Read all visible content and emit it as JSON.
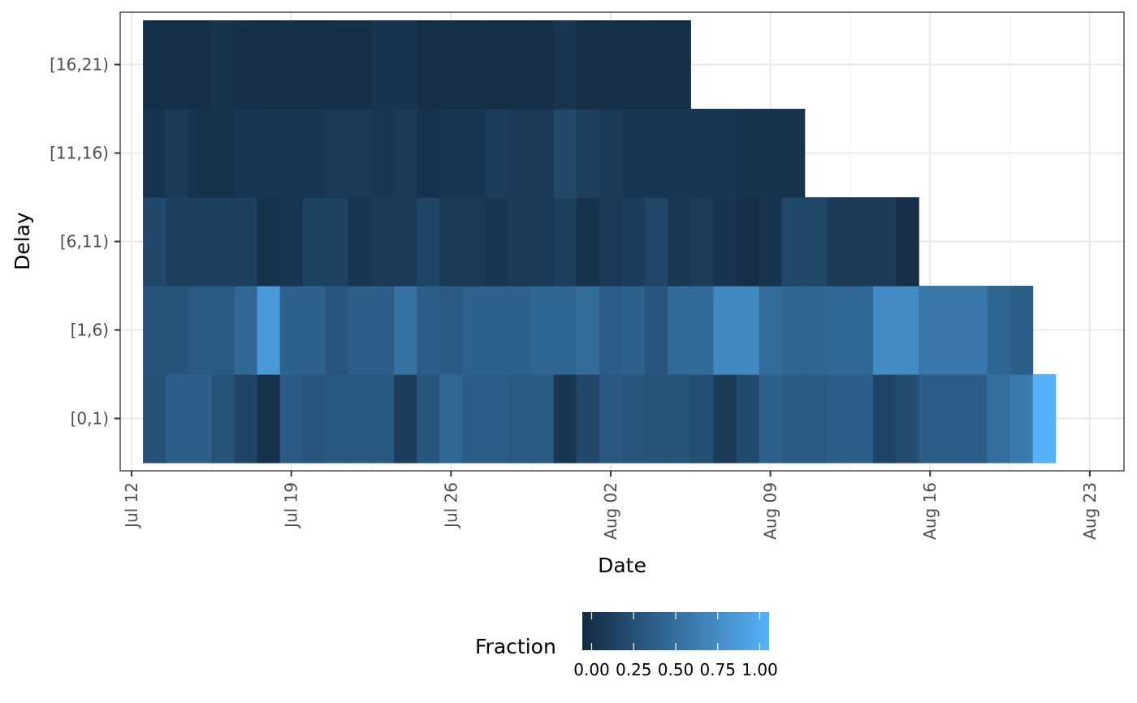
{
  "chart_data": {
    "type": "heatmap",
    "xlabel": "Date",
    "ylabel": "Delay",
    "x_ticks": [
      "Jul 12",
      "Jul 19",
      "Jul 26",
      "Aug 02",
      "Aug 09",
      "Aug 16",
      "Aug 23"
    ],
    "x_tick_dates": [
      "2020-07-12",
      "2020-07-19",
      "2020-07-26",
      "2020-08-02",
      "2020-08-09",
      "2020-08-16",
      "2020-08-23"
    ],
    "xlim": [
      "2020-07-11T12:00",
      "2020-08-24T12:00"
    ],
    "grid": true,
    "legend": {
      "title": "Fraction",
      "position": "bottom",
      "ticks": [
        "0.00",
        "0.25",
        "0.50",
        "0.75",
        "1.00"
      ],
      "low_color": "#132B43",
      "high_color": "#56B1F7"
    },
    "series": [
      {
        "name": "[0,1)",
        "start": "2020-07-13",
        "values": [
          0.28,
          0.39,
          0.39,
          0.3,
          0.19,
          0.05,
          0.36,
          0.31,
          0.34,
          0.34,
          0.34,
          0.14,
          0.31,
          0.45,
          0.37,
          0.37,
          0.35,
          0.35,
          0.09,
          0.22,
          0.33,
          0.31,
          0.3,
          0.3,
          0.26,
          0.12,
          0.24,
          0.41,
          0.35,
          0.35,
          0.38,
          0.38,
          0.19,
          0.25,
          0.37,
          0.37,
          0.37,
          0.51,
          0.59,
          1.0
        ]
      },
      {
        "name": "[1,6)",
        "start": "2020-07-13",
        "values": [
          0.3,
          0.3,
          0.35,
          0.35,
          0.45,
          0.82,
          0.4,
          0.4,
          0.31,
          0.38,
          0.38,
          0.53,
          0.38,
          0.35,
          0.4,
          0.4,
          0.41,
          0.44,
          0.44,
          0.48,
          0.37,
          0.4,
          0.31,
          0.47,
          0.47,
          0.7,
          0.7,
          0.48,
          0.43,
          0.43,
          0.45,
          0.45,
          0.72,
          0.72,
          0.57,
          0.57,
          0.57,
          0.44,
          0.39
        ]
      },
      {
        "name": "[6,11)",
        "start": "2020-07-13",
        "values": [
          0.22,
          0.16,
          0.16,
          0.16,
          0.16,
          0.05,
          0.08,
          0.17,
          0.17,
          0.08,
          0.12,
          0.12,
          0.19,
          0.11,
          0.11,
          0.08,
          0.12,
          0.11,
          0.15,
          0.05,
          0.11,
          0.14,
          0.2,
          0.1,
          0.13,
          0.07,
          0.03,
          0.07,
          0.21,
          0.21,
          0.12,
          0.12,
          0.12,
          0.03
        ]
      },
      {
        "name": "[11,16)",
        "start": "2020-07-13",
        "values": [
          0.06,
          0.12,
          0.05,
          0.05,
          0.09,
          0.09,
          0.09,
          0.09,
          0.11,
          0.11,
          0.09,
          0.11,
          0.05,
          0.09,
          0.09,
          0.14,
          0.11,
          0.11,
          0.21,
          0.15,
          0.11,
          0.09,
          0.09,
          0.09,
          0.09,
          0.09,
          0.06,
          0.06,
          0.06
        ]
      },
      {
        "name": "[16,21)",
        "start": "2020-07-13",
        "values": [
          0.03,
          0.03,
          0.03,
          0.05,
          0.04,
          0.03,
          0.03,
          0.03,
          0.04,
          0.04,
          0.07,
          0.07,
          0.03,
          0.03,
          0.03,
          0.03,
          0.03,
          0.03,
          0.08,
          0.03,
          0.03,
          0.03,
          0.03,
          0.03
        ]
      }
    ]
  }
}
